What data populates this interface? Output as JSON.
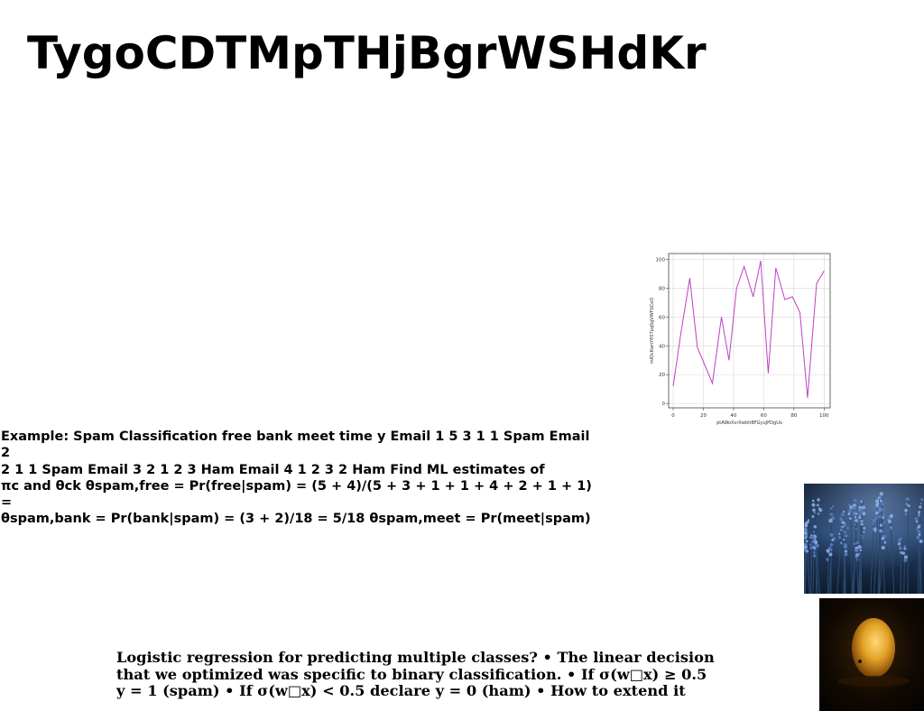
{
  "slide": {
    "title": "TygoCDTMpTHjBgrWSHdKr",
    "paragraph_1_lines": [
      "Example: Spam Classification free bank meet time y Email 1 5 3 1 1 Spam Email 2",
      "2 1 1 Spam Email 3 2 1 2 3 Ham Email 4 1 2 3 2 Ham Find ML estimates of",
      "πc and θck θspam,free = Pr(free|spam) = (5 + 4)/(5 + 3 + 1 + 1 + 4 + 2 + 1 + 1) =",
      "θspam,bank = Pr(bank|spam) = (3 + 2)/18 = 5/18 θspam,meet = Pr(meet|spam)"
    ],
    "paragraph_2_lines": [
      "Logistic regression for predicting multiple classes? • The linear decision",
      "that we optimized was specific to binary classification. • If σ(w□x) ≥ 0.5",
      "y = 1 (spam) • If σ(w□x) < 0.5 declare y = 0 (ham) • How to extend it"
    ],
    "images": [
      {
        "name": "flowers-photo",
        "description": "blue flowers field"
      },
      {
        "name": "egg-photo",
        "description": "glowing golden egg"
      }
    ]
  },
  "chart_data": {
    "type": "line",
    "xlabel": "ptAWoXvrXwbhBFGyuJPDgUo",
    "ylabel": "mIDcKwnYfiSTpqSgVWFbCoO",
    "xlim": [
      -3,
      104
    ],
    "ylim": [
      -3,
      104
    ],
    "xticks": [
      0,
      20,
      40,
      60,
      80,
      100
    ],
    "yticks": [
      0,
      20,
      40,
      60,
      80,
      100
    ],
    "grid": true,
    "color": "#c040c0",
    "series": [
      {
        "x": [
          0,
          5,
          11,
          16,
          26,
          32,
          37,
          42,
          47,
          53,
          58,
          63,
          68,
          74,
          79,
          84,
          89,
          95,
          100
        ],
        "y": [
          12,
          48,
          87,
          39,
          14,
          60,
          30,
          80,
          95,
          74,
          99,
          21,
          94,
          72,
          74,
          63,
          4,
          83,
          92
        ]
      }
    ]
  }
}
